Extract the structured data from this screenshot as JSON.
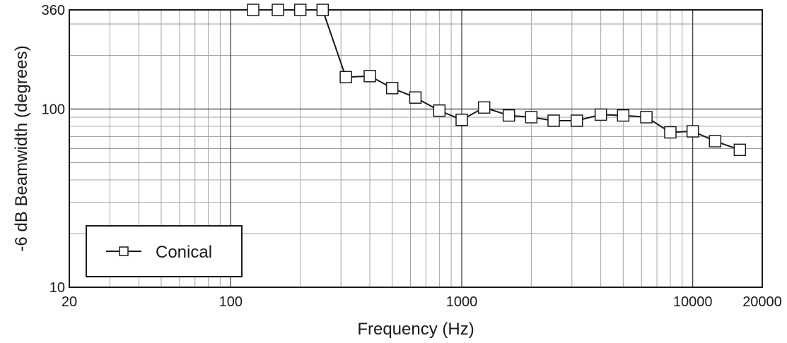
{
  "chart_data": {
    "type": "line",
    "xlabel": "Frequency (Hz)",
    "ylabel": "-6 dB Beamwidth (degrees)",
    "x_scale": "log",
    "y_scale": "log",
    "xlim": [
      20,
      20000
    ],
    "ylim": [
      10,
      360
    ],
    "x_ticks": [
      20,
      100,
      1000,
      10000,
      20000
    ],
    "x_tick_labels": [
      "20",
      "100",
      "1000",
      "10000",
      "20000"
    ],
    "y_ticks": [
      10,
      100,
      360
    ],
    "y_tick_labels": [
      "10",
      "100",
      "360"
    ],
    "grid": true,
    "legend_position": "bottom-left",
    "series": [
      {
        "name": "Conical",
        "marker": "square",
        "color": "#1a1a1a",
        "marker_fill": "#ffffff",
        "x": [
          125,
          160,
          200,
          250,
          315,
          400,
          500,
          630,
          800,
          1000,
          1250,
          1600,
          2000,
          2500,
          3150,
          4000,
          5000,
          6300,
          8000,
          10000,
          12500,
          16000
        ],
        "y": [
          360,
          360,
          360,
          360,
          151,
          153,
          131,
          116,
          98,
          87,
          102,
          92,
          90,
          86,
          86,
          93,
          92,
          90,
          74,
          75,
          66,
          59
        ]
      }
    ]
  }
}
